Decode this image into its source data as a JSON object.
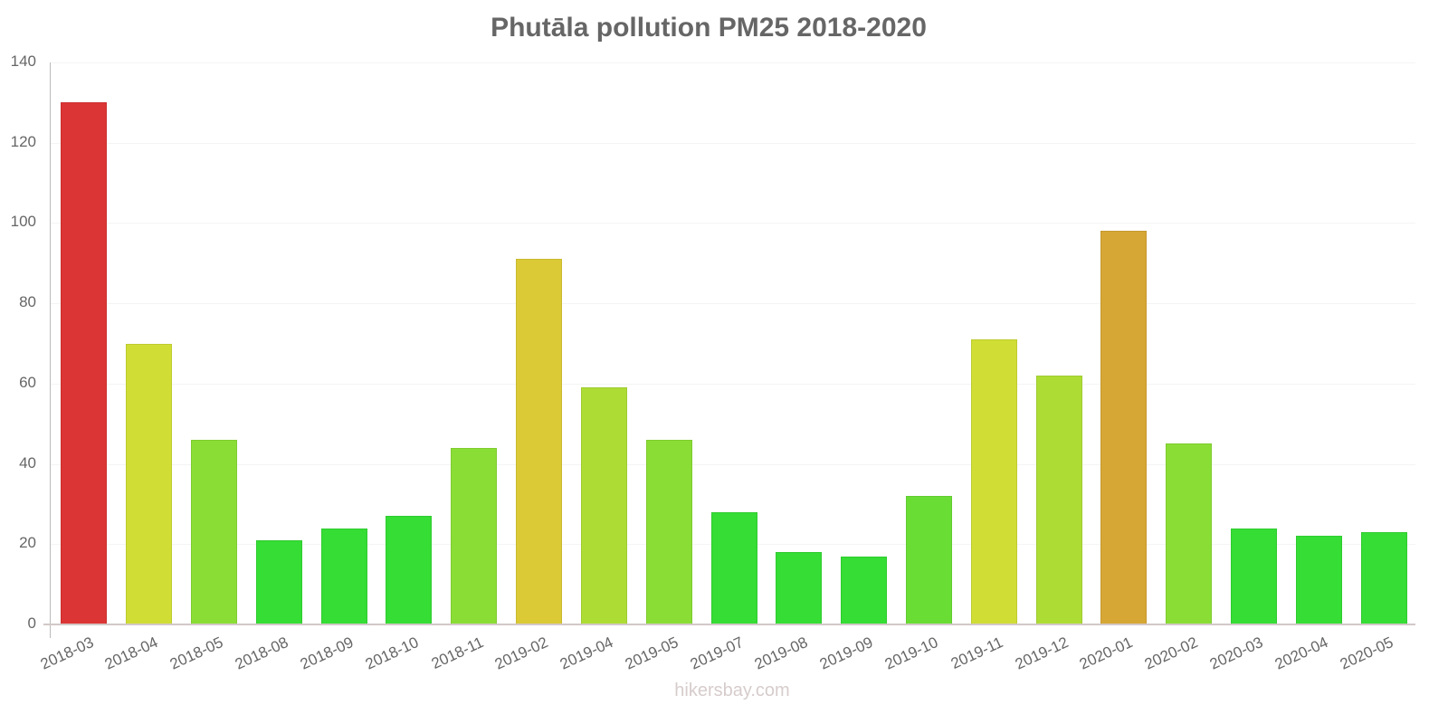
{
  "title": "Phutāla pollution PM25 2018-2020",
  "footer": "hikersbay.com",
  "y_ticks": [
    "0",
    "20",
    "40",
    "60",
    "80",
    "100",
    "120",
    "140"
  ],
  "chart_data": {
    "type": "bar",
    "title": "Phutāla pollution PM25 2018-2020",
    "xlabel": "",
    "ylabel": "",
    "ylim": [
      0,
      140
    ],
    "grid": true,
    "categories": [
      "2018-03",
      "2018-04",
      "2018-05",
      "2018-08",
      "2018-09",
      "2018-10",
      "2018-11",
      "2019-02",
      "2019-04",
      "2019-05",
      "2019-07",
      "2019-08",
      "2019-09",
      "2019-10",
      "2019-11",
      "2019-12",
      "2020-01",
      "2020-02",
      "2020-03",
      "2020-04",
      "2020-05"
    ],
    "values": [
      130,
      70,
      46,
      21,
      24,
      27,
      44,
      91,
      59,
      46,
      28,
      18,
      17,
      32,
      71,
      62,
      98,
      45,
      24,
      22,
      23
    ],
    "colors": [
      "#dc3535",
      "#cfdd35",
      "#8add35",
      "#35dd35",
      "#35dd35",
      "#35dd35",
      "#8add35",
      "#dbca35",
      "#addd35",
      "#8add35",
      "#35dd35",
      "#35dd35",
      "#35dd35",
      "#6add35",
      "#cfdd35",
      "#addd35",
      "#d6a735",
      "#8add35",
      "#35dd35",
      "#35dd35",
      "#35dd35"
    ]
  }
}
